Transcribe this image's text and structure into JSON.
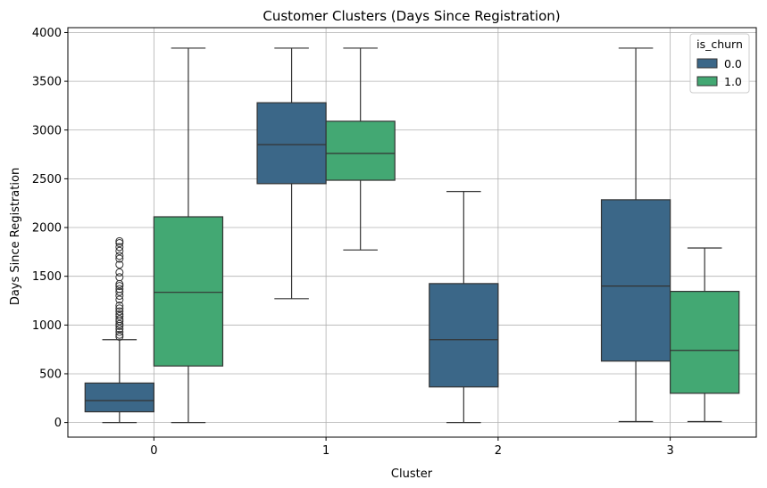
{
  "chart_data": {
    "type": "box",
    "title": "Customer Clusters (Days Since Registration)",
    "xlabel": "Cluster",
    "ylabel": "Days Since Registration",
    "categories": [
      "0",
      "1",
      "2",
      "3"
    ],
    "ylim": [
      -150,
      4050
    ],
    "yticks": [
      0,
      500,
      1000,
      1500,
      2000,
      2500,
      3000,
      3500,
      4000
    ],
    "grid": true,
    "legend": {
      "title": "is_churn",
      "placement": "top-right",
      "entries": [
        "0.0",
        "1.0"
      ]
    },
    "series": [
      {
        "name": "0.0",
        "color": "#3b6788",
        "boxes": [
          {
            "category": "0",
            "whislo": 0,
            "q1": 110,
            "med": 225,
            "q3": 405,
            "whishi": 850,
            "fliers": [
              880,
              900,
              930,
              960,
              990,
              1010,
              1040,
              1060,
              1090,
              1110,
              1140,
              1170,
              1200,
              1260,
              1300,
              1340,
              1370,
              1400,
              1420,
              1490,
              1540,
              1620,
              1680,
              1710,
              1760,
              1800,
              1840,
              1860
            ]
          },
          {
            "category": "1",
            "whislo": 1270,
            "q1": 2450,
            "med": 2850,
            "q3": 3280,
            "whishi": 3840,
            "fliers": []
          },
          {
            "category": "2",
            "whislo": 0,
            "q1": 365,
            "med": 850,
            "q3": 1425,
            "whishi": 2370,
            "fliers": []
          },
          {
            "category": "3",
            "whislo": 10,
            "q1": 630,
            "med": 1400,
            "q3": 2285,
            "whishi": 3840,
            "fliers": []
          }
        ]
      },
      {
        "name": "1.0",
        "color": "#43a873",
        "boxes": [
          {
            "category": "0",
            "whislo": 0,
            "q1": 580,
            "med": 1335,
            "q3": 2110,
            "whishi": 3840,
            "fliers": []
          },
          {
            "category": "1",
            "whislo": 1770,
            "q1": 2485,
            "med": 2760,
            "q3": 3090,
            "whishi": 3840,
            "fliers": []
          },
          {
            "category": "3",
            "whislo": 10,
            "q1": 300,
            "med": 740,
            "q3": 1345,
            "whishi": 1790,
            "fliers": []
          }
        ]
      }
    ]
  }
}
